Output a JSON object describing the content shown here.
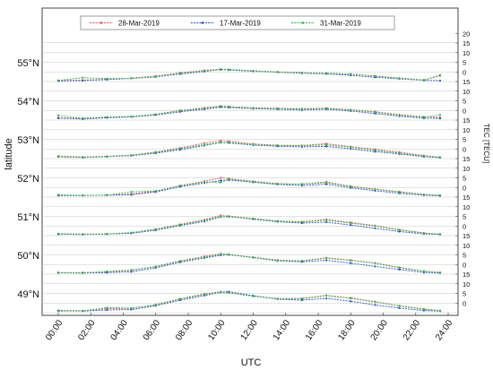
{
  "chart_data": {
    "type": "line",
    "title": "",
    "xlabel": "UTC",
    "ylabel_left": "latitude",
    "ylabel_right": "TEC [TECU]",
    "x_range": [
      "00:00",
      "24:00"
    ],
    "x_ticks": [
      "00:00",
      "02:00",
      "04:00",
      "06:00",
      "08:00",
      "10:00",
      "12:00",
      "14:00",
      "16:00",
      "18:00",
      "20:00",
      "22:00",
      "24:00"
    ],
    "lat_labels": [
      "55°N",
      "54°N",
      "53°N",
      "52°N",
      "51°N",
      "50°N",
      "49°N"
    ],
    "tec_ticks": [
      "20",
      "15",
      "10",
      "5",
      "0",
      "15",
      "10",
      "5",
      "0",
      "15",
      "10",
      "5",
      "0",
      "15",
      "10",
      "5",
      "0",
      "15",
      "10",
      "5",
      "0",
      "15",
      "10",
      "5",
      "0",
      "15",
      "10",
      "5",
      "0"
    ],
    "tec_range_per_band": [
      0,
      20
    ],
    "legend_position": "top",
    "colors": {
      "28-Mar-2019": "#e8534a",
      "17-Mar-2019": "#1f4fd8",
      "31-Mar-2019": "#2db84a"
    },
    "series": [
      {
        "name": "28-Mar-2019"
      },
      {
        "name": "17-Mar-2019"
      },
      {
        "name": "31-Mar-2019"
      }
    ],
    "latitudes": [
      {
        "lat": "55°N",
        "x": [
          0,
          1.5,
          3,
          4.5,
          6,
          7.5,
          9,
          10,
          10.5,
          12,
          13.5,
          15,
          16.5,
          18,
          19.5,
          21,
          22.5,
          23.5
        ],
        "values": [
          [
            0.5,
            0.7,
            1.2,
            1.8,
            2.8,
            4.5,
            5.8,
            6.4,
            6.3,
            5.6,
            5.0,
            4.6,
            4.2,
            3.8,
            2.9,
            1.8,
            0.8,
            3.0
          ],
          [
            0.3,
            0.5,
            1.0,
            1.6,
            2.4,
            3.9,
            5.2,
            6.3,
            6.0,
            5.3,
            4.8,
            4.3,
            4.0,
            3.2,
            2.2,
            1.4,
            0.6,
            0.5
          ],
          [
            0.6,
            2.0,
            1.5,
            1.6,
            2.5,
            4.2,
            5.5,
            6.1,
            6.2,
            5.5,
            4.9,
            4.5,
            4.3,
            3.9,
            2.8,
            1.7,
            0.7,
            3.4
          ]
        ]
      },
      {
        "lat": "54°N",
        "x": [
          0,
          1.5,
          3,
          4.5,
          6,
          7.5,
          9,
          10,
          10.5,
          12,
          13.5,
          15,
          16.5,
          18,
          19.5,
          21,
          22.5,
          23.5
        ],
        "values": [
          [
            1.2,
            0.8,
            1.3,
            1.8,
            3.0,
            5.0,
            6.4,
            7.3,
            7.0,
            6.4,
            6.1,
            5.9,
            6.2,
            5.4,
            4.3,
            2.8,
            1.7,
            1.3
          ],
          [
            1.0,
            0.5,
            1.2,
            1.6,
            2.6,
            4.3,
            5.6,
            6.7,
            6.5,
            5.9,
            5.6,
            5.2,
            5.6,
            4.7,
            3.4,
            2.0,
            1.0,
            0.9
          ],
          [
            2.4,
            0.9,
            1.6,
            1.9,
            2.9,
            4.8,
            6.0,
            7.0,
            6.8,
            6.2,
            5.9,
            5.7,
            6.0,
            5.2,
            4.1,
            2.5,
            1.5,
            2.6
          ]
        ]
      },
      {
        "lat": "53°N",
        "x": [
          0,
          1.5,
          3,
          4.5,
          6,
          7.5,
          9,
          10,
          10.5,
          12,
          13.5,
          15,
          16.5,
          18,
          19.5,
          21,
          22.5,
          23.5
        ],
        "values": [
          [
            1.3,
            0.8,
            1.2,
            1.8,
            3.4,
            5.5,
            8.0,
            9.3,
            9.0,
            7.6,
            6.9,
            6.8,
            7.7,
            6.2,
            4.8,
            3.3,
            1.6,
            0.6
          ],
          [
            0.9,
            0.6,
            1.0,
            1.5,
            2.8,
            4.6,
            6.8,
            8.3,
            8.1,
            7.0,
            6.4,
            6.1,
            6.3,
            5.1,
            3.6,
            2.4,
            1.0,
            0.5
          ],
          [
            1.0,
            0.5,
            1.1,
            1.7,
            3.2,
            5.1,
            7.2,
            8.4,
            8.3,
            7.3,
            6.8,
            6.6,
            7.1,
            5.9,
            4.4,
            2.8,
            1.3,
            0.7
          ]
        ]
      },
      {
        "lat": "52°N",
        "x": [
          0,
          1.5,
          3,
          4.5,
          6,
          7.5,
          9,
          10,
          10.5,
          12,
          13.5,
          15,
          16.5,
          18,
          19.5,
          21,
          22.5,
          23.5
        ],
        "values": [
          [
            1.0,
            0.9,
            1.0,
            1.6,
            3.0,
            6.0,
            8.2,
            10.0,
            9.6,
            8.2,
            7.0,
            6.8,
            7.9,
            5.6,
            4.2,
            2.8,
            1.4,
            0.8
          ],
          [
            0.8,
            0.8,
            1.0,
            1.2,
            2.7,
            5.4,
            7.3,
            8.6,
            8.9,
            7.7,
            6.6,
            6.0,
            6.7,
            4.8,
            3.3,
            2.0,
            1.0,
            0.7
          ],
          [
            1.2,
            0.9,
            1.0,
            2.7,
            3.2,
            5.8,
            7.8,
            7.6,
            9.3,
            8.0,
            6.8,
            6.7,
            7.5,
            5.4,
            4.0,
            2.6,
            1.3,
            1.0
          ]
        ]
      },
      {
        "lat": "51°N",
        "x": [
          0,
          1.5,
          3,
          4.5,
          6,
          7.5,
          9,
          10,
          10.5,
          12,
          13.5,
          15,
          16.5,
          18,
          19.5,
          21,
          22.5,
          23.5
        ],
        "values": [
          [
            0.9,
            0.8,
            0.9,
            1.5,
            3.4,
            5.8,
            8.3,
            10.5,
            10.1,
            8.9,
            7.6,
            7.2,
            8.4,
            6.8,
            5.2,
            3.1,
            1.4,
            0.7
          ],
          [
            0.7,
            0.6,
            0.8,
            1.2,
            2.8,
            5.2,
            7.4,
            9.7,
            9.9,
            8.5,
            7.2,
            6.5,
            7.0,
            5.5,
            3.8,
            2.1,
            0.9,
            0.6
          ],
          [
            1.0,
            0.7,
            0.8,
            1.6,
            3.2,
            5.5,
            7.9,
            9.9,
            9.8,
            8.7,
            7.5,
            7.0,
            8.0,
            6.5,
            5.0,
            2.9,
            1.2,
            0.8
          ]
        ]
      },
      {
        "lat": "50°N",
        "x": [
          0,
          1.5,
          3,
          4.5,
          6,
          7.5,
          9,
          10,
          10.5,
          12,
          13.5,
          15,
          16.5,
          18,
          19.5,
          21,
          22.5,
          23.5
        ],
        "values": [
          [
            0.8,
            0.8,
            1.1,
            2.0,
            4.0,
            6.9,
            9.2,
            10.6,
            10.2,
            8.8,
            7.3,
            6.9,
            8.5,
            7.3,
            5.8,
            3.5,
            1.6,
            0.9
          ],
          [
            0.7,
            0.6,
            0.8,
            1.2,
            3.3,
            6.2,
            8.4,
            9.8,
            10.1,
            8.6,
            6.9,
            6.4,
            7.2,
            5.7,
            4.0,
            2.4,
            0.9,
            0.6
          ],
          [
            0.8,
            0.6,
            1.4,
            2.2,
            3.8,
            6.7,
            8.8,
            10.3,
            10.0,
            8.7,
            7.1,
            6.8,
            8.3,
            7.1,
            5.6,
            3.3,
            1.5,
            0.8
          ]
        ]
      },
      {
        "lat": "49°N",
        "x": [
          0,
          1.5,
          3,
          4.5,
          6,
          7.5,
          9,
          10,
          10.5,
          12,
          13.5,
          15,
          16.5,
          18,
          19.5,
          21,
          22.5,
          23.5
        ],
        "values": [
          [
            1.2,
            1.0,
            2.1,
            2.2,
            4.2,
            7.2,
            9.8,
            10.8,
            10.4,
            8.6,
            7.3,
            7.4,
            9.0,
            7.6,
            5.7,
            3.6,
            1.9,
            1.1
          ],
          [
            1.0,
            0.8,
            1.4,
            1.6,
            3.6,
            6.5,
            8.9,
            10.6,
            10.9,
            8.8,
            7.0,
            6.5,
            7.4,
            5.9,
            4.0,
            2.4,
            1.1,
            0.8
          ],
          [
            0.8,
            0.9,
            2.6,
            2.4,
            4.0,
            7.0,
            9.5,
            10.4,
            10.3,
            8.5,
            7.2,
            7.2,
            8.8,
            7.4,
            5.5,
            3.5,
            1.7,
            1.0
          ]
        ]
      }
    ]
  }
}
